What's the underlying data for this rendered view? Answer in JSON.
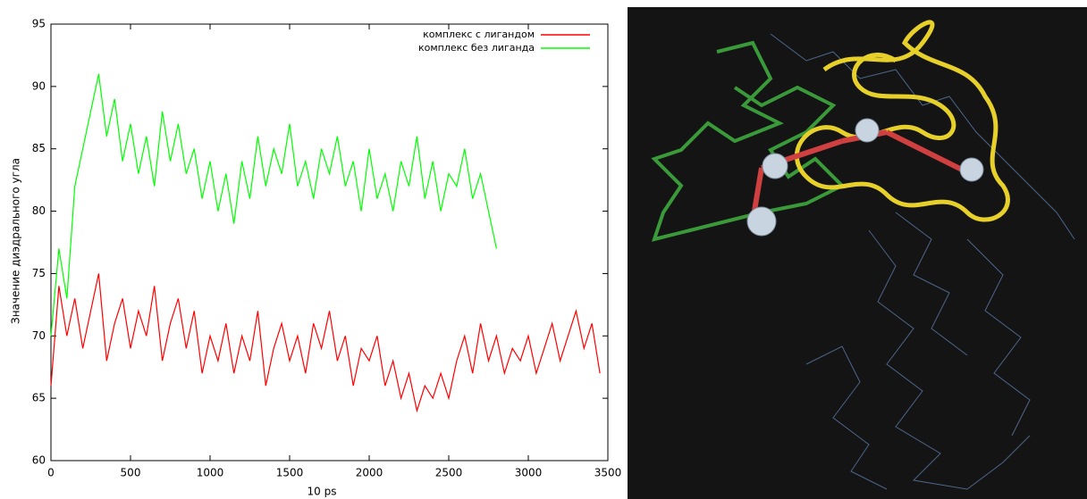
{
  "chart_data": {
    "type": "line",
    "x_label": "10 ps",
    "y_label": "Значение диэдрального угла",
    "xlim": [
      0,
      3500
    ],
    "xticks": [
      0,
      500,
      1000,
      1500,
      2000,
      2500,
      3000,
      3500
    ],
    "ylim": [
      60,
      95
    ],
    "yticks": [
      60,
      65,
      70,
      75,
      80,
      85,
      90,
      95
    ],
    "grid": false,
    "legend": "upper right",
    "series": [
      {
        "name": "комплекс с лигандом",
        "color": "#ff0000",
        "x": [
          0,
          50,
          100,
          150,
          200,
          250,
          300,
          350,
          400,
          450,
          500,
          550,
          600,
          650,
          700,
          750,
          800,
          850,
          900,
          950,
          1000,
          1050,
          1100,
          1150,
          1200,
          1250,
          1300,
          1350,
          1400,
          1450,
          1500,
          1550,
          1600,
          1650,
          1700,
          1750,
          1800,
          1850,
          1900,
          1950,
          2000,
          2050,
          2100,
          2150,
          2200,
          2250,
          2300,
          2350,
          2400,
          2450,
          2500,
          2550,
          2600,
          2650,
          2700,
          2750,
          2800,
          2850,
          2900,
          2950,
          3000,
          3050,
          3100,
          3150,
          3200,
          3250,
          3300,
          3350,
          3400,
          3450
        ],
        "values": [
          66,
          74,
          70,
          73,
          69,
          72,
          75,
          68,
          71,
          73,
          69,
          72,
          70,
          74,
          68,
          71,
          73,
          69,
          72,
          67,
          70,
          68,
          71,
          67,
          70,
          68,
          72,
          66,
          69,
          71,
          68,
          70,
          67,
          71,
          69,
          72,
          68,
          70,
          66,
          69,
          68,
          70,
          66,
          68,
          65,
          67,
          64,
          66,
          65,
          67,
          65,
          68,
          70,
          67,
          71,
          68,
          70,
          67,
          69,
          68,
          70,
          67,
          69,
          71,
          68,
          70,
          72,
          69,
          71,
          67
        ]
      },
      {
        "name": "комплекс без лиганда",
        "color": "#00ff00",
        "x": [
          0,
          50,
          100,
          150,
          200,
          250,
          300,
          350,
          400,
          450,
          500,
          550,
          600,
          650,
          700,
          750,
          800,
          850,
          900,
          950,
          1000,
          1050,
          1100,
          1150,
          1200,
          1250,
          1300,
          1350,
          1400,
          1450,
          1500,
          1550,
          1600,
          1650,
          1700,
          1750,
          1800,
          1850,
          1900,
          1950,
          2000,
          2050,
          2100,
          2150,
          2200,
          2250,
          2300,
          2350,
          2400,
          2450,
          2500,
          2550,
          2600,
          2650,
          2700,
          2750,
          2800
        ],
        "values": [
          70,
          77,
          73,
          82,
          85,
          88,
          91,
          86,
          89,
          84,
          87,
          83,
          86,
          82,
          88,
          84,
          87,
          83,
          85,
          81,
          84,
          80,
          83,
          79,
          84,
          81,
          86,
          82,
          85,
          83,
          87,
          82,
          84,
          81,
          85,
          83,
          86,
          82,
          84,
          80,
          85,
          81,
          83,
          80,
          84,
          82,
          86,
          81,
          84,
          80,
          83,
          82,
          85,
          81,
          83,
          80,
          77
        ]
      }
    ]
  }
}
